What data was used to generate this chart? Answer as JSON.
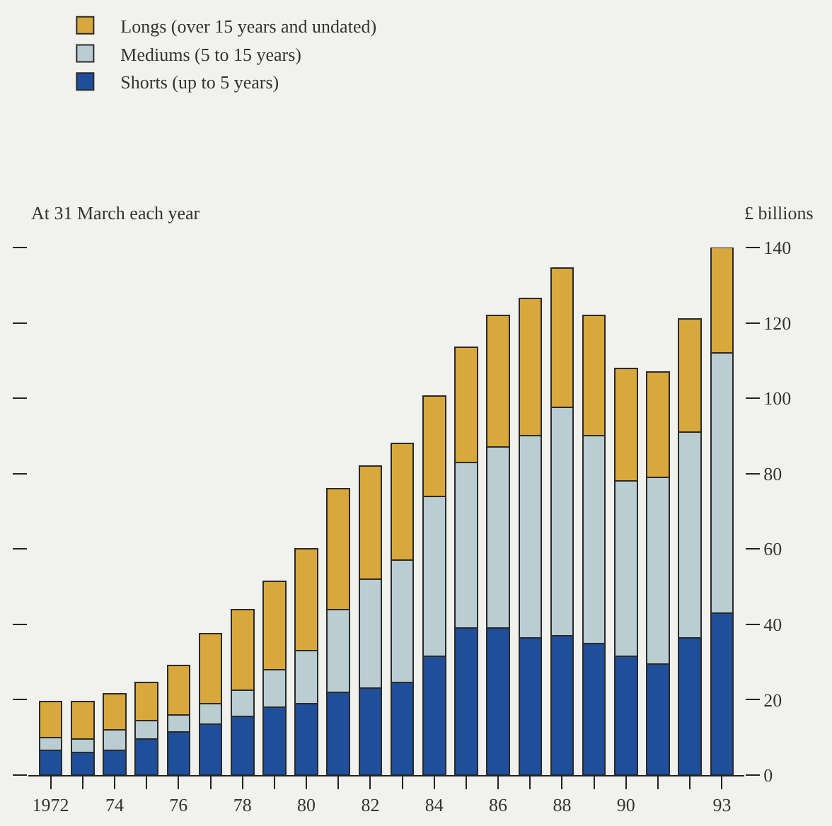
{
  "chart_data": {
    "type": "bar",
    "stacked": true,
    "ylabel": "£ billions",
    "annotations": [
      "At 31 March each year"
    ],
    "categories": [
      "1972",
      null,
      "74",
      null,
      "76",
      null,
      "78",
      null,
      "80",
      null,
      "82",
      null,
      "84",
      null,
      "86",
      null,
      "88",
      null,
      "90",
      null,
      null,
      "93"
    ],
    "series": [
      {
        "name": "Shorts (up to 5 years)",
        "color": "#1f4e9a",
        "values": [
          6.5,
          6,
          6.5,
          9.5,
          11.5,
          13.5,
          15.5,
          18,
          19,
          22,
          23,
          24.5,
          31.5,
          39,
          39,
          36.5,
          37,
          35,
          31.5,
          29.5,
          36.5,
          43
        ]
      },
      {
        "name": "Mediums (5 to 15 years)",
        "color": "#b9cdd3",
        "values": [
          3.5,
          3.5,
          5.5,
          5,
          4.5,
          5.5,
          7,
          10,
          14,
          22,
          29,
          32.5,
          42.5,
          44,
          48,
          53.5,
          60.5,
          55,
          46.5,
          49.5,
          54.5,
          69
        ]
      },
      {
        "name": "Longs (over 15 years and undated)",
        "color": "#d9a83c",
        "values": [
          9.5,
          10,
          9.5,
          10,
          13,
          18.5,
          21.5,
          23.5,
          27,
          32,
          30,
          31,
          26.5,
          30.5,
          35,
          36.5,
          37,
          32,
          30,
          28,
          30,
          28
        ]
      }
    ],
    "ylim": [
      0,
      140
    ],
    "yticks": [
      0,
      20,
      40,
      60,
      80,
      100,
      120,
      140
    ],
    "legend": "top left"
  }
}
